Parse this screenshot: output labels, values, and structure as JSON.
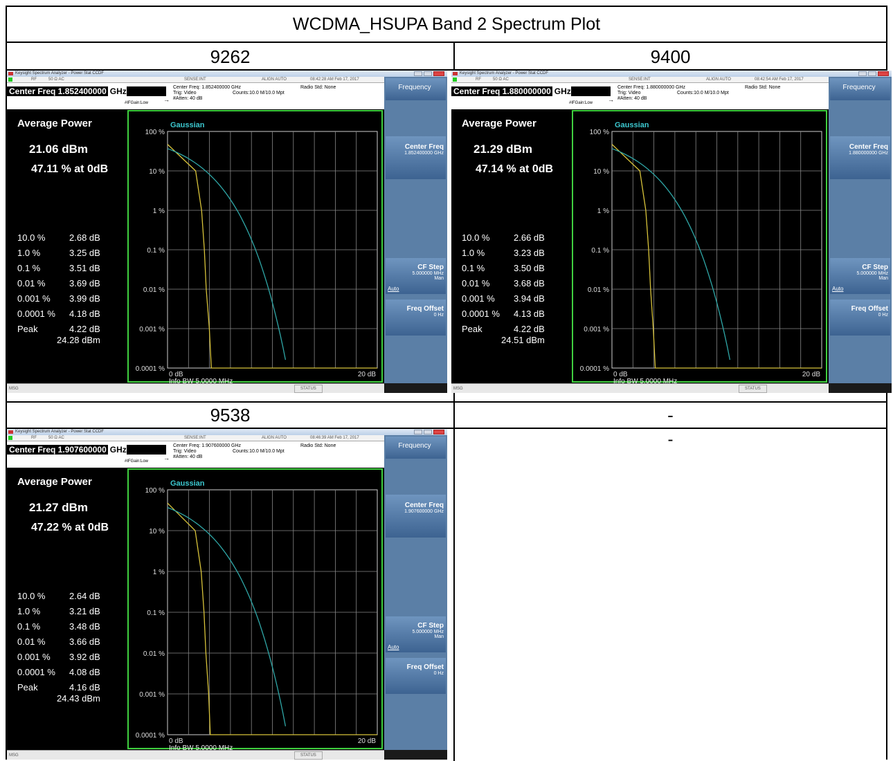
{
  "title": "WCDMA_HSUPA Band 2 Spectrum Plot",
  "channels": [
    "9262",
    "9400",
    "9538",
    "-"
  ],
  "empty_cell": "-",
  "common": {
    "window_title": "Keysight Spectrum Analyzer - Power Stat CCDF",
    "rf": "RF",
    "impedance": "50 Ω  AC",
    "sense": "SENSE:INT",
    "align": "ALIGN AUTO",
    "trig": "Trig: Video",
    "atten": "#Atten: 40 dB",
    "counts": "Counts:10.0 M/10.0 Mpt",
    "radio_std": "Radio Std: None",
    "gain": "#IFGain:Low",
    "frequency_key": "Frequency",
    "center_freq_key": "Center Freq",
    "cf_step_key": "CF Step",
    "cf_step_value": "5.000000 MHz",
    "auto": "Auto",
    "man": "Man",
    "freq_offset_key": "Freq Offset",
    "freq_offset_value": "0 Hz",
    "average_power": "Average Power",
    "gaussian": "Gaussian",
    "y_ticks": [
      "100 %",
      "10 %",
      "1 %",
      "0.1 %",
      "0.01 %",
      "0.001 %",
      "0.0001 %"
    ],
    "x_left": "0 dB",
    "x_right": "20 dB",
    "info_bw_label": "Info BW",
    "info_bw_value": "5.0000 MHz",
    "msg": "MSG",
    "status": "STATUS",
    "peak": "Peak"
  },
  "panels": [
    {
      "center_freq_text": "Center Freq 1.852400000",
      "ghz": "GHz",
      "center_freq_meta": "Center Freq: 1.852400000 GHz",
      "center_freq_value": "1.852400000 GHz",
      "timestamp": "08:42:28 AM Feb 17, 2017",
      "avg_dbm": "21.06 dBm",
      "pct_at_0db": "47.11 % at 0dB",
      "stats": [
        {
          "p": "10.0 %",
          "v": "2.68 dB"
        },
        {
          "p": "1.0 %",
          "v": "3.25 dB"
        },
        {
          "p": "0.1 %",
          "v": "3.51 dB"
        },
        {
          "p": "0.01 %",
          "v": "3.69 dB"
        },
        {
          "p": "0.001 %",
          "v": "3.99 dB"
        },
        {
          "p": "0.0001 %",
          "v": "4.18 dB"
        }
      ],
      "peak_db": "4.22 dB",
      "peak_dbm": "24.28 dBm",
      "ccdf_at_0db_percent": 47.11,
      "gaussian_at_0db_percent": 37
    },
    {
      "center_freq_text": "Center Freq 1.880000000",
      "ghz": "GHz",
      "center_freq_meta": "Center Freq: 1.880000000 GHz",
      "center_freq_value": "1.880000000 GHz",
      "timestamp": "08:42:54 AM Feb 17, 2017",
      "avg_dbm": "21.29 dBm",
      "pct_at_0db": "47.14 % at 0dB",
      "stats": [
        {
          "p": "10.0 %",
          "v": "2.66 dB"
        },
        {
          "p": "1.0 %",
          "v": "3.23 dB"
        },
        {
          "p": "0.1 %",
          "v": "3.50 dB"
        },
        {
          "p": "0.01 %",
          "v": "3.68 dB"
        },
        {
          "p": "0.001 %",
          "v": "3.94 dB"
        },
        {
          "p": "0.0001 %",
          "v": "4.13 dB"
        }
      ],
      "peak_db": "4.22 dB",
      "peak_dbm": "24.51 dBm",
      "ccdf_at_0db_percent": 47.14,
      "gaussian_at_0db_percent": 37
    },
    {
      "center_freq_text": "Center Freq 1.907600000",
      "ghz": "GHz",
      "center_freq_meta": "Center Freq: 1.907600000 GHz",
      "center_freq_value": "1.907600000 GHz",
      "timestamp": "08:46:39 AM Feb 17, 2017",
      "avg_dbm": "21.27 dBm",
      "pct_at_0db": "47.22 % at 0dB",
      "stats": [
        {
          "p": "10.0 %",
          "v": "2.64 dB"
        },
        {
          "p": "1.0 %",
          "v": "3.21 dB"
        },
        {
          "p": "0.1 %",
          "v": "3.48 dB"
        },
        {
          "p": "0.01 %",
          "v": "3.66 dB"
        },
        {
          "p": "0.001 %",
          "v": "3.92 dB"
        },
        {
          "p": "0.0001 %",
          "v": "4.08 dB"
        }
      ],
      "peak_db": "4.16 dB",
      "peak_dbm": "24.43 dBm",
      "ccdf_at_0db_percent": 47.22,
      "gaussian_at_0db_percent": 37
    }
  ],
  "colors": {
    "trace": "#d8c33a",
    "gaussian": "#2fa7a7",
    "plot_border": "#3fcf3f",
    "softkey": "#4f76a3"
  }
}
